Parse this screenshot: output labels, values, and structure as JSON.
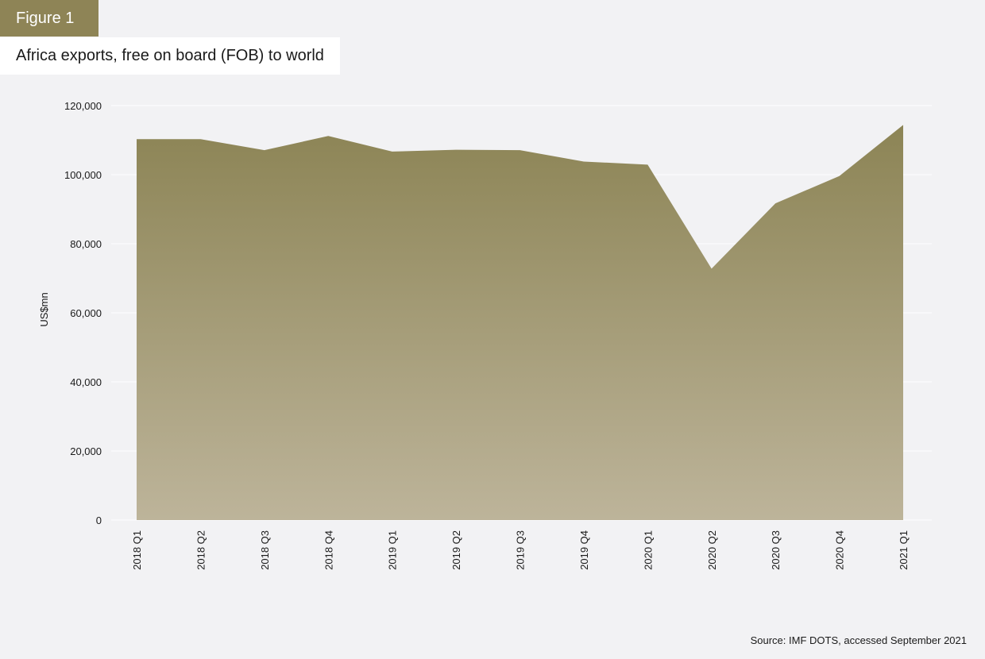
{
  "figure_label": "Figure 1",
  "source": "Source: IMF DOTS, accessed September 2021",
  "colors": {
    "accent": "#8e8456",
    "area_top": "#8c8455",
    "area_bottom": "#bdb49a",
    "background": "#f2f2f4",
    "gridline": "#ffffff"
  },
  "chart_data": {
    "type": "area",
    "title": "Africa exports, free on board (FOB) to world",
    "ylabel": "US$mn",
    "xlabel": "",
    "categories": [
      "2018 Q1",
      "2018 Q2",
      "2018 Q3",
      "2018 Q4",
      "2019 Q1",
      "2019 Q2",
      "2019 Q3",
      "2019 Q4",
      "2020 Q1",
      "2020 Q2",
      "2020 Q3",
      "2020 Q4",
      "2021 Q1"
    ],
    "series": [
      {
        "values": [
          110300,
          110300,
          107100,
          111200,
          106700,
          107200,
          107100,
          103800,
          102900,
          72800,
          91700,
          99600,
          114400
        ]
      }
    ],
    "ylim": [
      0,
      120000
    ],
    "yticks": [
      0,
      20000,
      40000,
      60000,
      80000,
      100000,
      120000
    ],
    "ytick_labels": [
      "0",
      "20,000",
      "40,000",
      "60,000",
      "80,000",
      "100,000",
      "120,000"
    ],
    "grid": true,
    "legend": "none"
  }
}
